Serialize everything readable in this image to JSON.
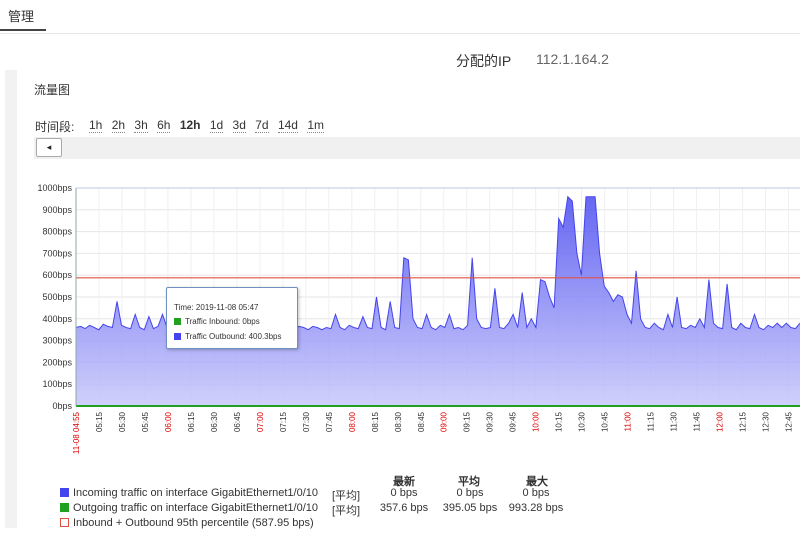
{
  "tab": {
    "label": "管理"
  },
  "ip": {
    "label": "分配的IP",
    "value": "112.1.164.2"
  },
  "panel": {
    "title": "流量图"
  },
  "period": {
    "label": "时间段:",
    "options": [
      "1h",
      "2h",
      "3h",
      "6h",
      "12h",
      "1d",
      "3d",
      "7d",
      "14d",
      "1m"
    ],
    "selected": "12h"
  },
  "scroll": {
    "left_icon": "◂"
  },
  "tooltip": {
    "time": "Time:  2019-11-08 05:47",
    "inbound": "Traffic Inbound:  0bps",
    "outbound": "Traffic Outbound:  400.3bps"
  },
  "colors": {
    "incoming": "#4444ee",
    "outgoing": "#20a020",
    "percentile": "#e05040",
    "area_fill_top": "#4b4bf0",
    "area_fill_bottom": "#c8c8fb",
    "red_tick": "#dd0000"
  },
  "chart_data": {
    "type": "area",
    "ylim": [
      0,
      1000
    ],
    "yticks": [
      "0bps",
      "100bps",
      "200bps",
      "300bps",
      "400bps",
      "500bps",
      "600bps",
      "700bps",
      "800bps",
      "900bps",
      "1000bps"
    ],
    "xticks": [
      {
        "label": "11-08 04:55",
        "red": true
      },
      {
        "label": "05:15",
        "red": false
      },
      {
        "label": "05:30",
        "red": false
      },
      {
        "label": "05:45",
        "red": false
      },
      {
        "label": "06:00",
        "red": true
      },
      {
        "label": "06:15",
        "red": false
      },
      {
        "label": "06:30",
        "red": false
      },
      {
        "label": "06:45",
        "red": false
      },
      {
        "label": "07:00",
        "red": true
      },
      {
        "label": "07:15",
        "red": false
      },
      {
        "label": "07:30",
        "red": false
      },
      {
        "label": "07:45",
        "red": false
      },
      {
        "label": "08:00",
        "red": true
      },
      {
        "label": "08:15",
        "red": false
      },
      {
        "label": "08:30",
        "red": false
      },
      {
        "label": "08:45",
        "red": false
      },
      {
        "label": "09:00",
        "red": true
      },
      {
        "label": "09:15",
        "red": false
      },
      {
        "label": "09:30",
        "red": false
      },
      {
        "label": "09:45",
        "red": false
      },
      {
        "label": "10:00",
        "red": true
      },
      {
        "label": "10:15",
        "red": false
      },
      {
        "label": "10:30",
        "red": false
      },
      {
        "label": "10:45",
        "red": false
      },
      {
        "label": "11:00",
        "red": true
      },
      {
        "label": "11:15",
        "red": false
      },
      {
        "label": "11:30",
        "red": false
      },
      {
        "label": "11:45",
        "red": false
      },
      {
        "label": "12:00",
        "red": true
      },
      {
        "label": "12:15",
        "red": false
      },
      {
        "label": "12:30",
        "red": false
      },
      {
        "label": "12:45",
        "red": false
      }
    ],
    "series": [
      {
        "name": "Outgoing traffic",
        "values": [
          360,
          365,
          355,
          370,
          360,
          350,
          375,
          365,
          360,
          480,
          370,
          360,
          355,
          420,
          360,
          350,
          410,
          355,
          365,
          420,
          360,
          350,
          410,
          365,
          360,
          355,
          400,
          360,
          350,
          420,
          360,
          355,
          380,
          360,
          365,
          355,
          350,
          370,
          360,
          355,
          365,
          360,
          355,
          370,
          360,
          350,
          420,
          360,
          355,
          365,
          360,
          350,
          365,
          360,
          350,
          360,
          355,
          420,
          360,
          350,
          370,
          360,
          355,
          410,
          360,
          355,
          500,
          360,
          350,
          480,
          360,
          355,
          680,
          670,
          400,
          360,
          355,
          420,
          360,
          350,
          370,
          360,
          420,
          355,
          360,
          350,
          370,
          680,
          400,
          360,
          355,
          360,
          540,
          360,
          355,
          380,
          420,
          360,
          520,
          360,
          400,
          360,
          580,
          570,
          500,
          450,
          860,
          820,
          960,
          940,
          700,
          600,
          960,
          960,
          960,
          700,
          550,
          520,
          480,
          510,
          500,
          420,
          380,
          620,
          400,
          360,
          355,
          380,
          360,
          350,
          420,
          360,
          500,
          360,
          355,
          370,
          360,
          400,
          360,
          580,
          380,
          360,
          355,
          560,
          360,
          350,
          380,
          360,
          355,
          420,
          360,
          350,
          370,
          360,
          380,
          360,
          380,
          360,
          355,
          380
        ]
      },
      {
        "name": "Incoming traffic",
        "values": [
          0,
          0,
          0,
          0,
          0,
          0,
          0,
          0,
          0,
          0,
          0,
          0,
          0,
          0,
          0,
          0,
          0,
          0,
          0,
          0,
          0,
          0,
          0,
          0,
          0,
          0,
          0,
          0,
          0,
          0,
          0,
          0,
          0,
          0,
          0,
          0,
          0,
          0,
          0,
          0,
          0,
          0,
          0,
          0,
          0,
          0,
          0,
          0,
          0,
          0,
          0,
          0,
          0,
          0,
          0,
          0,
          0,
          0,
          0,
          0,
          0,
          0,
          0,
          0,
          0,
          0,
          0,
          0,
          0,
          0,
          0,
          0,
          0,
          0,
          0,
          0,
          0,
          0,
          0,
          0,
          0,
          0,
          0,
          0,
          0,
          0,
          0,
          0,
          0,
          0,
          0,
          0,
          0,
          0,
          0,
          0,
          0,
          0,
          0,
          0,
          0,
          0,
          0,
          0,
          0,
          0,
          0,
          0,
          0,
          0,
          0,
          0,
          0,
          0,
          0,
          0,
          0,
          0,
          0,
          0,
          0,
          0,
          0,
          0,
          0,
          0,
          0,
          0,
          0,
          0,
          0,
          0,
          0,
          0,
          0,
          0,
          0,
          0,
          0,
          0,
          0,
          0,
          0,
          0,
          0,
          0,
          0,
          0,
          0,
          0,
          0,
          0,
          0,
          0,
          0,
          0,
          0,
          0,
          0,
          0,
          0,
          0,
          0,
          0
        ]
      }
    ],
    "percentile_95": 587.95
  },
  "legend": {
    "incoming_label": "Incoming traffic on interface GigabitEthernet1/0/10",
    "outgoing_label": "Outgoing traffic on interface GigabitEthernet1/0/10",
    "percentile_label": "Inbound + Outbound 95th percentile  (587.95 bps)",
    "avg_tag": "[平均]"
  },
  "stats": {
    "headers": [
      "最新",
      "平均",
      "最大"
    ],
    "incoming": [
      "0 bps",
      "0 bps",
      "0 bps"
    ],
    "outgoing": [
      "357.6 bps",
      "395.05 bps",
      "993.28 bps"
    ]
  }
}
